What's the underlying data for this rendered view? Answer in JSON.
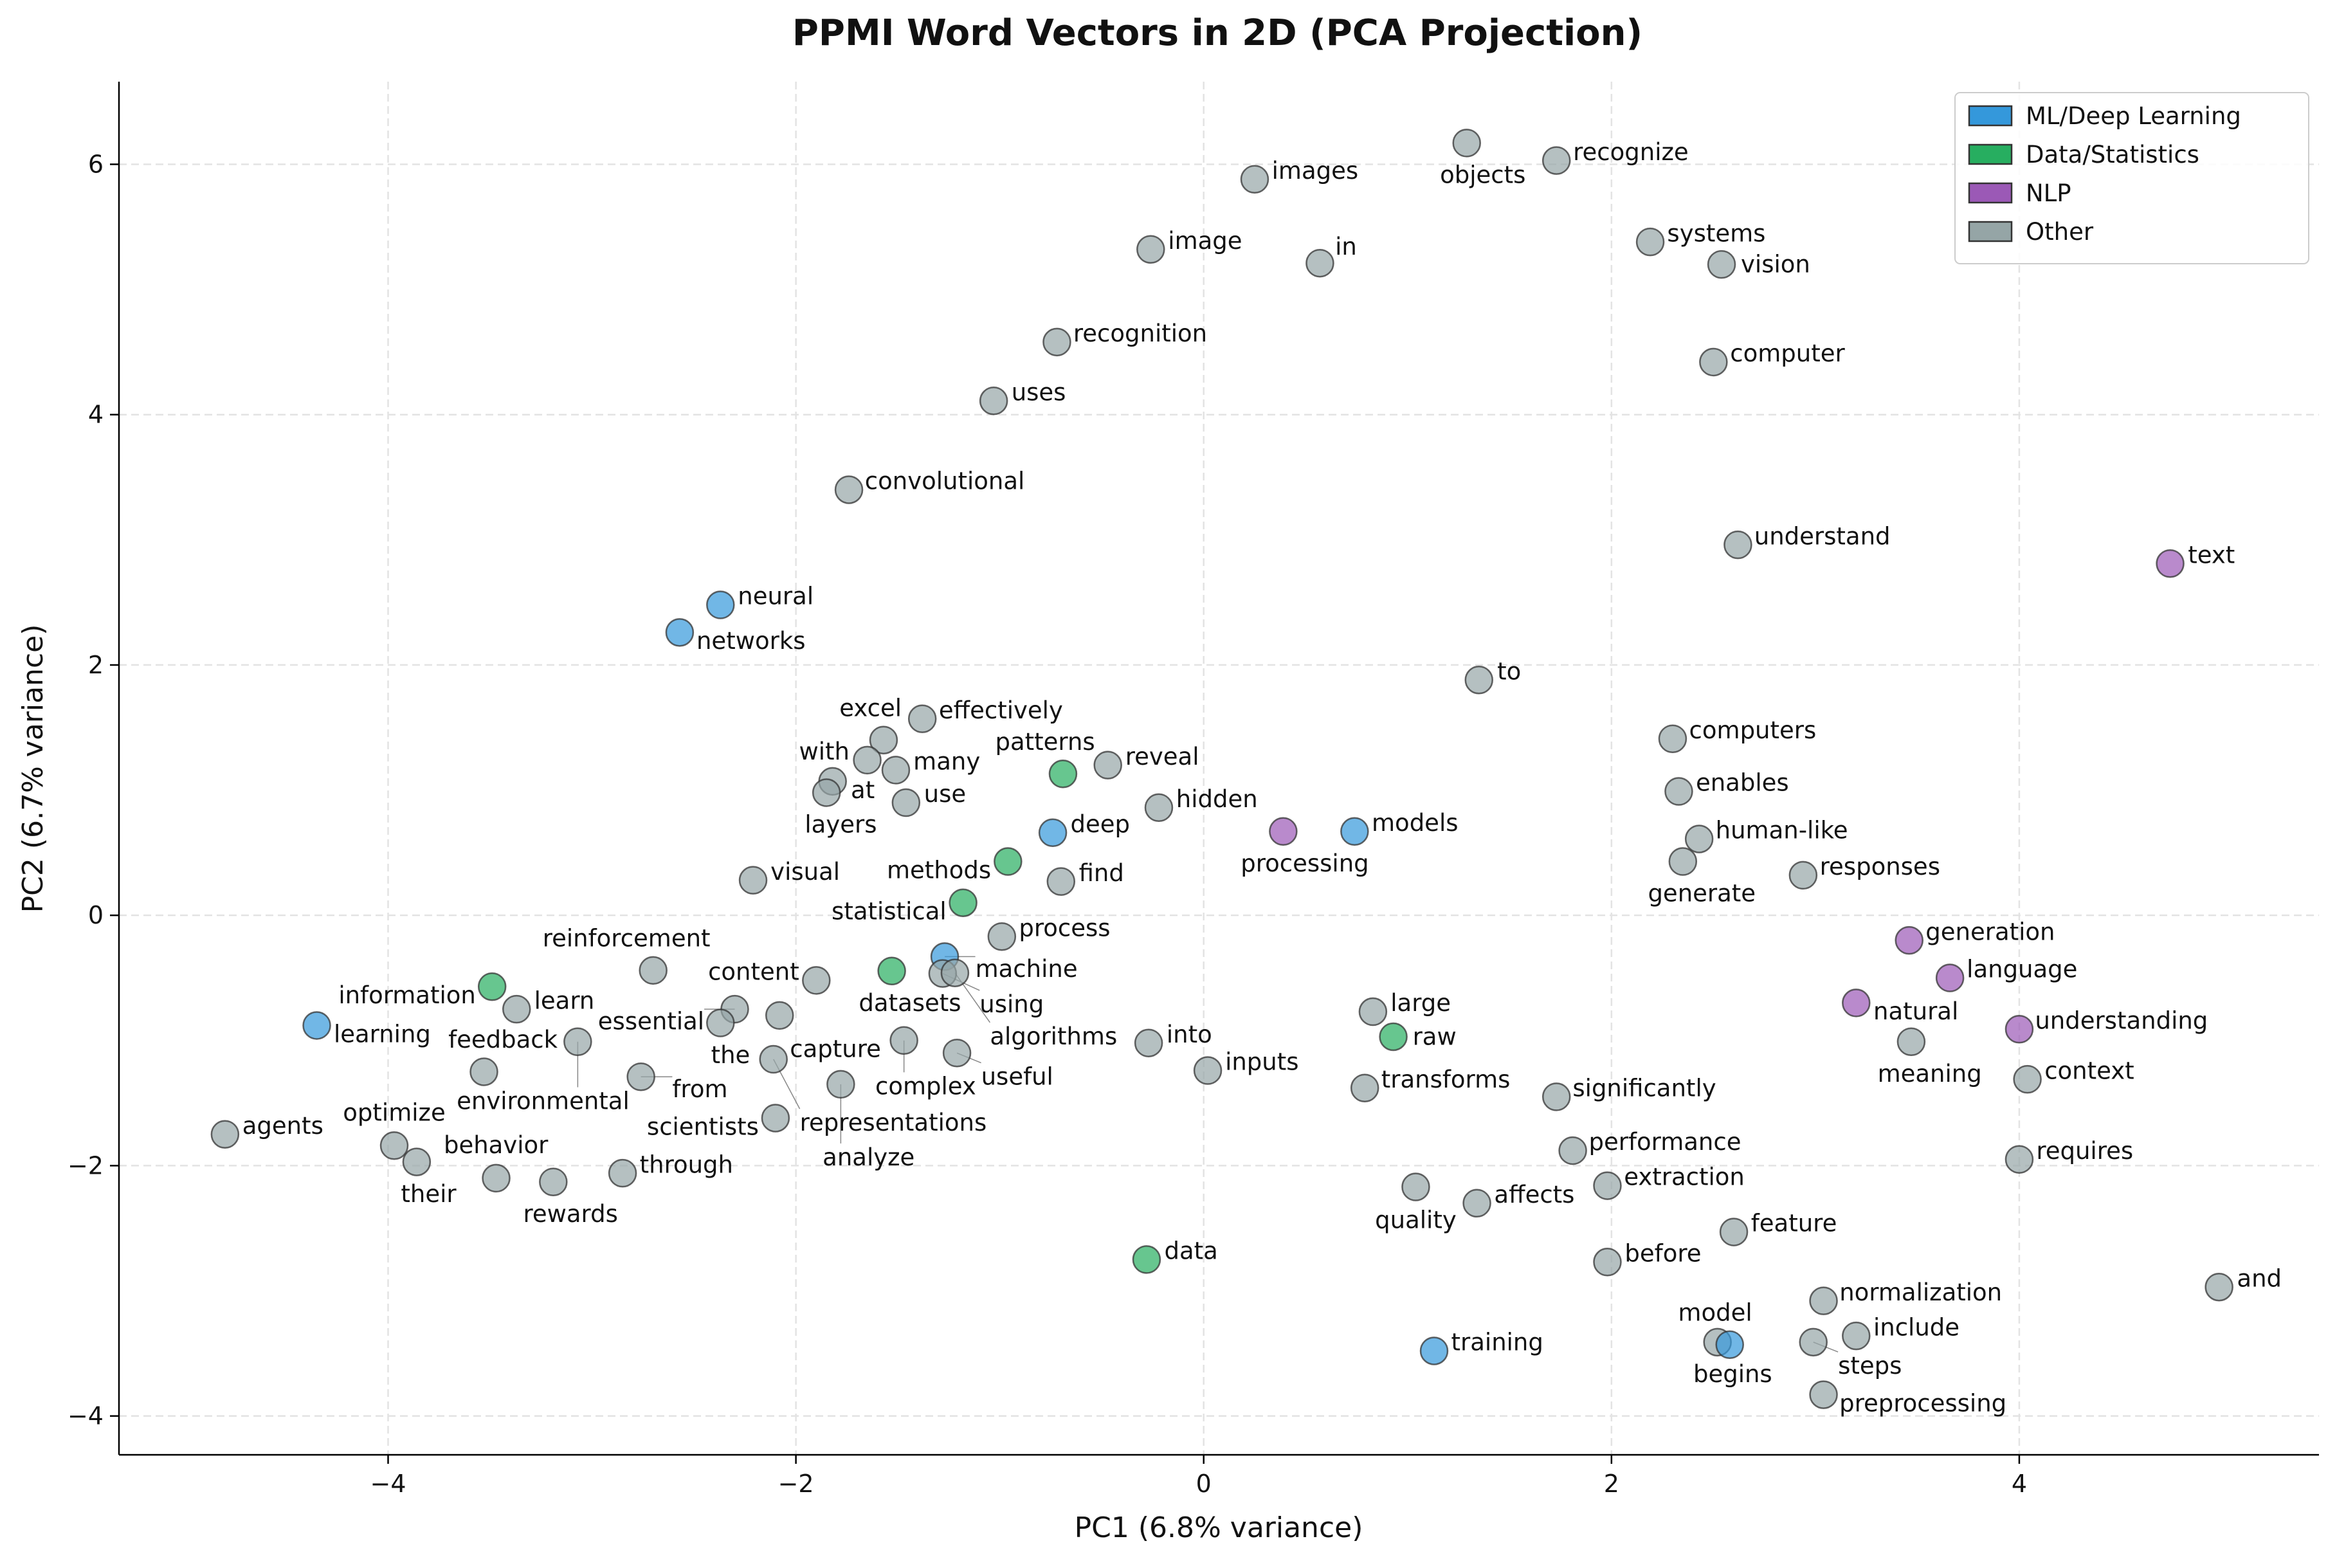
{
  "chart_data": {
    "type": "scatter",
    "title": "PPMI Word Vectors in 2D (PCA Projection)",
    "xlabel": "PC1 (6.8% variance)",
    "ylabel": "PC2 (6.7% variance)",
    "xlim": [
      -5.32,
      5.47
    ],
    "ylim": [
      -4.31,
      6.66
    ],
    "xticks": [
      -4,
      -2,
      0,
      2,
      4
    ],
    "yticks": [
      -4,
      -2,
      0,
      2,
      4,
      6
    ],
    "xtick_labels": [
      "−4",
      "−2",
      "0",
      "2",
      "4"
    ],
    "ytick_labels": [
      "−4",
      "−2",
      "0",
      "2",
      "4",
      "6"
    ],
    "grid": true,
    "legend_position": "top-right",
    "categories": [
      {
        "key": "ml",
        "name": "ML/Deep Learning",
        "color": "#3498db"
      },
      {
        "key": "data",
        "name": "Data/Statistics",
        "color": "#27ae60"
      },
      {
        "key": "nlp",
        "name": "NLP",
        "color": "#9b59b6"
      },
      {
        "key": "other",
        "name": "Other",
        "color": "#95a5a6"
      }
    ],
    "points": [
      {
        "word": "objects",
        "x": 1.29,
        "y": 6.17,
        "cat": "other"
      },
      {
        "word": "recognize",
        "x": 1.73,
        "y": 6.03,
        "cat": "other"
      },
      {
        "word": "images",
        "x": 0.25,
        "y": 5.88,
        "cat": "other"
      },
      {
        "word": "image",
        "x": -0.26,
        "y": 5.32,
        "cat": "other"
      },
      {
        "word": "in",
        "x": 0.57,
        "y": 5.21,
        "cat": "other"
      },
      {
        "word": "systems",
        "x": 2.19,
        "y": 5.38,
        "cat": "other"
      },
      {
        "word": "vision",
        "x": 2.54,
        "y": 5.2,
        "cat": "other"
      },
      {
        "word": "recognition",
        "x": -0.72,
        "y": 4.58,
        "cat": "other"
      },
      {
        "word": "computer",
        "x": 2.5,
        "y": 4.42,
        "cat": "other"
      },
      {
        "word": "uses",
        "x": -1.03,
        "y": 4.11,
        "cat": "other"
      },
      {
        "word": "convolutional",
        "x": -1.74,
        "y": 3.4,
        "cat": "other"
      },
      {
        "word": "understand",
        "x": 2.62,
        "y": 2.96,
        "cat": "other"
      },
      {
        "word": "text",
        "x": 4.74,
        "y": 2.81,
        "cat": "nlp"
      },
      {
        "word": "neural",
        "x": -2.37,
        "y": 2.48,
        "cat": "ml"
      },
      {
        "word": "networks",
        "x": -2.57,
        "y": 2.26,
        "cat": "ml"
      },
      {
        "word": "to",
        "x": 1.35,
        "y": 1.88,
        "cat": "other"
      },
      {
        "word": "effectively",
        "x": -1.38,
        "y": 1.57,
        "cat": "other"
      },
      {
        "word": "excel",
        "x": -1.57,
        "y": 1.4,
        "cat": "other"
      },
      {
        "word": "with",
        "x": -1.65,
        "y": 1.24,
        "cat": "other"
      },
      {
        "word": "many",
        "x": -1.51,
        "y": 1.16,
        "cat": "other"
      },
      {
        "word": "at",
        "x": -1.82,
        "y": 1.07,
        "cat": "other"
      },
      {
        "word": "layers",
        "x": -1.85,
        "y": 0.98,
        "cat": "other"
      },
      {
        "word": "use",
        "x": -1.46,
        "y": 0.9,
        "cat": "other"
      },
      {
        "word": "patterns",
        "x": -0.69,
        "y": 1.13,
        "cat": "data"
      },
      {
        "word": "reveal",
        "x": -0.47,
        "y": 1.2,
        "cat": "other"
      },
      {
        "word": "hidden",
        "x": -0.22,
        "y": 0.86,
        "cat": "other"
      },
      {
        "word": "deep",
        "x": -0.74,
        "y": 0.66,
        "cat": "ml"
      },
      {
        "word": "methods",
        "x": -0.96,
        "y": 0.43,
        "cat": "data"
      },
      {
        "word": "find",
        "x": -0.7,
        "y": 0.27,
        "cat": "other"
      },
      {
        "word": "statistical",
        "x": -1.18,
        "y": 0.1,
        "cat": "data"
      },
      {
        "word": "visual",
        "x": -2.21,
        "y": 0.28,
        "cat": "other"
      },
      {
        "word": "process",
        "x": -0.99,
        "y": -0.17,
        "cat": "other"
      },
      {
        "word": "machine",
        "x": -1.27,
        "y": -0.33,
        "cat": "ml"
      },
      {
        "word": "datasets",
        "x": -1.53,
        "y": -0.445,
        "cat": "data"
      },
      {
        "word": "using",
        "x": -1.28,
        "y": -0.465,
        "cat": "other"
      },
      {
        "word": "algorithms",
        "x": -1.22,
        "y": -0.46,
        "cat": "other"
      },
      {
        "word": "content",
        "x": -1.9,
        "y": -0.52,
        "cat": "other"
      },
      {
        "word": "capture",
        "x": -2.08,
        "y": -0.8,
        "cat": "other"
      },
      {
        "word": "essential",
        "x": -2.3,
        "y": -0.75,
        "cat": "other"
      },
      {
        "word": "the",
        "x": -2.37,
        "y": -0.86,
        "cat": "other"
      },
      {
        "word": "reinforcement",
        "x": -2.7,
        "y": -0.44,
        "cat": "other"
      },
      {
        "word": "information",
        "x": -3.49,
        "y": -0.57,
        "cat": "data"
      },
      {
        "word": "learn",
        "x": -3.37,
        "y": -0.75,
        "cat": "other"
      },
      {
        "word": "learning",
        "x": -4.35,
        "y": -0.88,
        "cat": "ml"
      },
      {
        "word": "environmental",
        "x": -3.07,
        "y": -1.01,
        "cat": "other"
      },
      {
        "word": "feedback",
        "x": -3.53,
        "y": -1.25,
        "cat": "other"
      },
      {
        "word": "from",
        "x": -2.76,
        "y": -1.29,
        "cat": "other"
      },
      {
        "word": "complex",
        "x": -1.47,
        "y": -1.0,
        "cat": "other"
      },
      {
        "word": "useful",
        "x": -1.21,
        "y": -1.1,
        "cat": "other"
      },
      {
        "word": "representations",
        "x": -2.11,
        "y": -1.15,
        "cat": "other"
      },
      {
        "word": "analyze",
        "x": -1.78,
        "y": -1.35,
        "cat": "other"
      },
      {
        "word": "scientists",
        "x": -2.1,
        "y": -1.62,
        "cat": "other"
      },
      {
        "word": "agents",
        "x": -4.8,
        "y": -1.75,
        "cat": "other"
      },
      {
        "word": "optimize",
        "x": -3.97,
        "y": -1.84,
        "cat": "other"
      },
      {
        "word": "their",
        "x": -3.86,
        "y": -1.97,
        "cat": "other"
      },
      {
        "word": "behavior",
        "x": -3.47,
        "y": -2.1,
        "cat": "other"
      },
      {
        "word": "rewards",
        "x": -3.19,
        "y": -2.13,
        "cat": "other"
      },
      {
        "word": "through",
        "x": -2.85,
        "y": -2.06,
        "cat": "other"
      },
      {
        "word": "into",
        "x": -0.27,
        "y": -1.02,
        "cat": "other"
      },
      {
        "word": "inputs",
        "x": 0.02,
        "y": -1.24,
        "cat": "other"
      },
      {
        "word": "processing",
        "x": 0.39,
        "y": 0.67,
        "cat": "nlp"
      },
      {
        "word": "models",
        "x": 0.74,
        "y": 0.67,
        "cat": "ml"
      },
      {
        "word": "large",
        "x": 0.83,
        "y": -0.77,
        "cat": "other"
      },
      {
        "word": "raw",
        "x": 0.93,
        "y": -0.97,
        "cat": "data"
      },
      {
        "word": "transforms",
        "x": 0.79,
        "y": -1.38,
        "cat": "other"
      },
      {
        "word": "significantly",
        "x": 1.73,
        "y": -1.45,
        "cat": "other"
      },
      {
        "word": "performance",
        "x": 1.81,
        "y": -1.88,
        "cat": "other"
      },
      {
        "word": "quality",
        "x": 1.04,
        "y": -2.17,
        "cat": "other"
      },
      {
        "word": "affects",
        "x": 1.34,
        "y": -2.3,
        "cat": "other"
      },
      {
        "word": "extraction",
        "x": 1.98,
        "y": -2.16,
        "cat": "other"
      },
      {
        "word": "data",
        "x": -0.28,
        "y": -2.75,
        "cat": "data"
      },
      {
        "word": "before",
        "x": 1.98,
        "y": -2.77,
        "cat": "other"
      },
      {
        "word": "feature",
        "x": 2.6,
        "y": -2.53,
        "cat": "other"
      },
      {
        "word": "training",
        "x": 1.13,
        "y": -3.48,
        "cat": "ml"
      },
      {
        "word": "computers",
        "x": 2.3,
        "y": 1.41,
        "cat": "other"
      },
      {
        "word": "enables",
        "x": 2.33,
        "y": 0.99,
        "cat": "other"
      },
      {
        "word": "human-like",
        "x": 2.43,
        "y": 0.61,
        "cat": "other"
      },
      {
        "word": "generate",
        "x": 2.35,
        "y": 0.43,
        "cat": "other"
      },
      {
        "word": "responses",
        "x": 2.94,
        "y": 0.32,
        "cat": "other"
      },
      {
        "word": "generation",
        "x": 3.46,
        "y": -0.2,
        "cat": "nlp"
      },
      {
        "word": "language",
        "x": 3.66,
        "y": -0.5,
        "cat": "nlp"
      },
      {
        "word": "natural",
        "x": 3.2,
        "y": -0.7,
        "cat": "nlp"
      },
      {
        "word": "meaning",
        "x": 3.47,
        "y": -1.01,
        "cat": "other"
      },
      {
        "word": "understanding",
        "x": 4.0,
        "y": -0.91,
        "cat": "nlp"
      },
      {
        "word": "context",
        "x": 4.04,
        "y": -1.31,
        "cat": "other"
      },
      {
        "word": "requires",
        "x": 4.0,
        "y": -1.95,
        "cat": "other"
      },
      {
        "word": "and",
        "x": 4.98,
        "y": -2.97,
        "cat": "other"
      },
      {
        "word": "normalization",
        "x": 3.04,
        "y": -3.08,
        "cat": "other"
      },
      {
        "word": "begins",
        "x": 2.52,
        "y": -3.41,
        "cat": "other"
      },
      {
        "word": "model",
        "x": 2.58,
        "y": -3.43,
        "cat": "ml"
      },
      {
        "word": "steps",
        "x": 2.99,
        "y": -3.41,
        "cat": "other"
      },
      {
        "word": "include",
        "x": 3.2,
        "y": -3.36,
        "cat": "other"
      },
      {
        "word": "preprocessing",
        "x": 3.04,
        "y": -3.83,
        "cat": "other"
      }
    ]
  }
}
